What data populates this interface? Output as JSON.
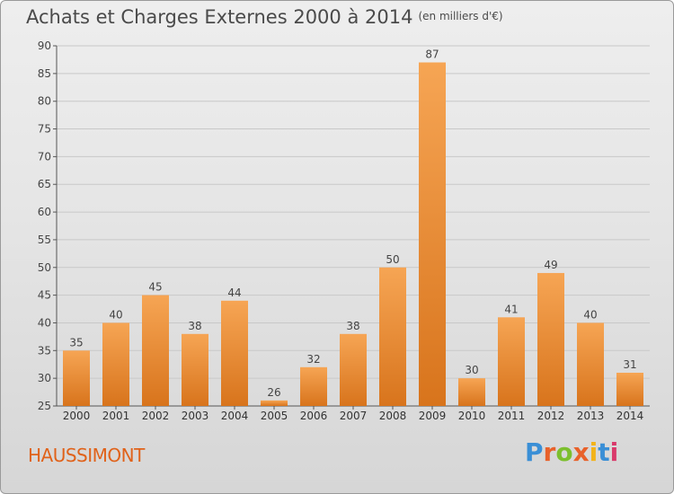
{
  "header": {
    "title": "Achats et Charges Externes 2000 à 2014",
    "unit": "(en milliers d'€)"
  },
  "footer": {
    "place": "HAUSSIMONT",
    "brand": "Proxiti",
    "brand_colors": [
      "#3a8fd6",
      "#e8612a",
      "#7cbf2e",
      "#e8612a",
      "#f2b31a",
      "#3a8fd6",
      "#d93a6b"
    ]
  },
  "colors": {
    "bar_top": "#f6a554",
    "bar_bottom": "#d8741c",
    "grid": "#c8c8c8",
    "axis": "#555555",
    "title": "#4a4a4a",
    "place": "#e0621a"
  },
  "chart_data": {
    "type": "bar",
    "title": "Achats et Charges Externes 2000 à 2014",
    "subtitle": "(en milliers d'€)",
    "categories": [
      "2000",
      "2001",
      "2002",
      "2003",
      "2004",
      "2005",
      "2006",
      "2007",
      "2008",
      "2009",
      "2010",
      "2011",
      "2012",
      "2013",
      "2014"
    ],
    "values": [
      35,
      40,
      45,
      38,
      44,
      26,
      32,
      38,
      50,
      87,
      30,
      41,
      49,
      40,
      31
    ],
    "ylim": [
      25,
      90
    ],
    "yticks": [
      25,
      30,
      35,
      40,
      45,
      50,
      55,
      60,
      65,
      70,
      75,
      80,
      85,
      90
    ],
    "grid": true,
    "data_labels": true
  }
}
